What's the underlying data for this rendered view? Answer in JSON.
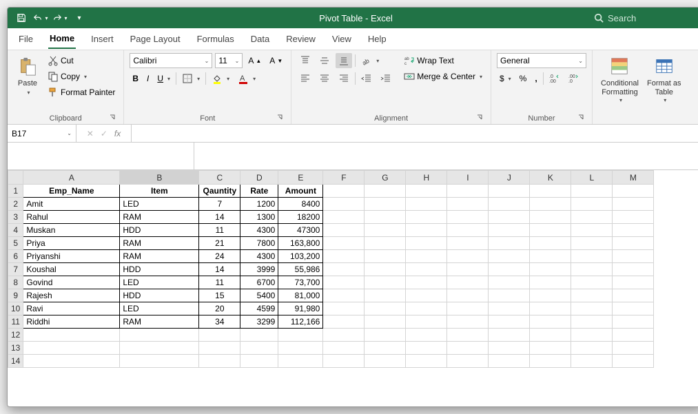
{
  "titlebar": {
    "title": "Pivot Table  -  Excel",
    "search_placeholder": "Search"
  },
  "menus": {
    "file": "File",
    "home": "Home",
    "insert": "Insert",
    "pagelayout": "Page Layout",
    "formulas": "Formulas",
    "data": "Data",
    "review": "Review",
    "view": "View",
    "help": "Help"
  },
  "ribbon": {
    "clipboard": {
      "label": "Clipboard",
      "paste": "Paste",
      "cut": "Cut",
      "copy": "Copy",
      "fmtpainter": "Format Painter"
    },
    "font": {
      "label": "Font",
      "name": "Calibri",
      "size": "11"
    },
    "alignment": {
      "label": "Alignment",
      "wrap": "Wrap Text",
      "merge": "Merge & Center"
    },
    "number": {
      "label": "Number",
      "format": "General"
    },
    "styles": {
      "cond": "Conditional\nFormatting",
      "fmttable": "Format as\nTable"
    }
  },
  "namebox": {
    "ref": "B17"
  },
  "fx": {
    "symbol": "fx"
  },
  "columns": [
    "A",
    "B",
    "C",
    "D",
    "E",
    "F",
    "G",
    "H",
    "I",
    "J",
    "K",
    "L",
    "M"
  ],
  "colwidths": {
    "A": 140,
    "B": 115,
    "C": 60,
    "D": 55,
    "E": 65,
    "other": 60
  },
  "rows": 14,
  "headers": [
    "Emp_Name",
    "Item",
    "Qauntity",
    "Rate",
    "Amount"
  ],
  "data": [
    [
      "Amit",
      "LED",
      "7",
      "1200",
      "8400"
    ],
    [
      "Rahul",
      "RAM",
      "14",
      "1300",
      "18200"
    ],
    [
      "Muskan",
      "HDD",
      "11",
      "4300",
      "47300"
    ],
    [
      "Priya",
      "RAM",
      "21",
      "7800",
      "163,800"
    ],
    [
      "Priyanshi",
      "RAM",
      "24",
      "4300",
      "103,200"
    ],
    [
      "Koushal",
      "HDD",
      "14",
      "3999",
      "55,986"
    ],
    [
      "Govind",
      "LED",
      "11",
      "6700",
      "73,700"
    ],
    [
      "Rajesh",
      "HDD",
      "15",
      "5400",
      "81,000"
    ],
    [
      "Ravi",
      "LED",
      "20",
      "4599",
      "91,980"
    ],
    [
      "Riddhi",
      "RAM",
      "34",
      "3299",
      "112,166"
    ]
  ],
  "colors": {
    "brand": "#217346"
  }
}
